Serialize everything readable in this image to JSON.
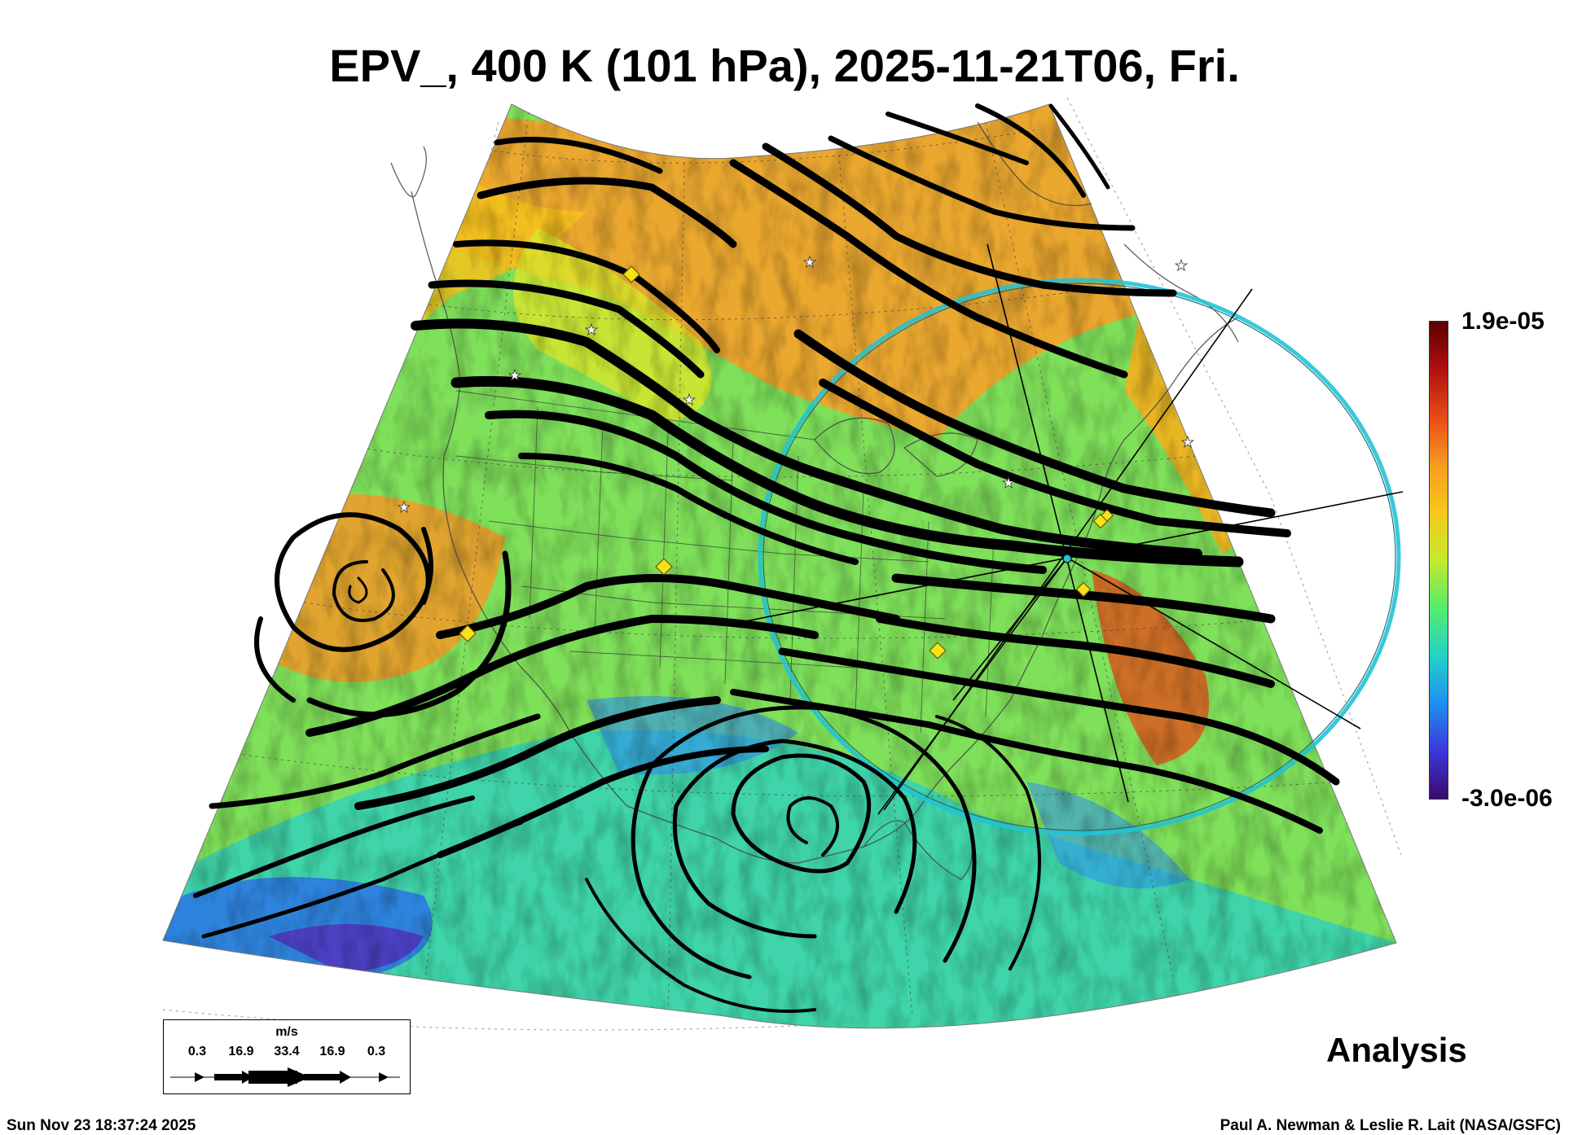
{
  "header": {
    "title": "EPV_, 400 K (101 hPa), 2025-11-21T06, Fri."
  },
  "colorbar": {
    "max_label": "1.9e-05",
    "min_label": "-3.0e-06",
    "max_value": 1.9e-05,
    "min_value": -3e-06,
    "colormap": [
      "#3b0a6e",
      "#3a38d8",
      "#1f8ff0",
      "#23d2c8",
      "#55ec6b",
      "#c4ea2c",
      "#f7c81c",
      "#f79a21",
      "#e84a17",
      "#b01010",
      "#5a0000"
    ]
  },
  "legend": {
    "unit": "m/s",
    "values": [
      "0.3",
      "16.9",
      "33.4",
      "16.9",
      "0.3"
    ]
  },
  "label": {
    "run_type": "Analysis"
  },
  "footer": {
    "timestamp": "Sun Nov 23 18:37:24 2025",
    "credit": "Paul A. Newman & Leslie R. Lait (NASA/GSFC)"
  },
  "map": {
    "projection": "polar-stereographic sector",
    "region": "North America",
    "field": "EPV",
    "overlays": [
      "wind streamlines",
      "coastlines",
      "state boundaries",
      "lat/lon grid",
      "range ring",
      "cross-section lines"
    ],
    "colors": {
      "streamline": "#000000",
      "ring": "#22c3d6",
      "diamond_marker": "#f6e21a",
      "star_marker": "#ffffff"
    },
    "marker_counts": {
      "diamonds": 7,
      "stars": 8
    }
  }
}
